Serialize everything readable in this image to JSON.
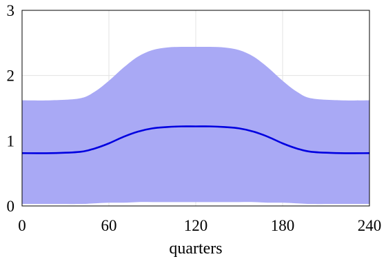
{
  "chart_data": {
    "type": "area",
    "title": "",
    "xlabel": "quarters",
    "ylabel": "",
    "xlim": [
      0,
      240
    ],
    "ylim": [
      0,
      3
    ],
    "xticks": [
      0,
      60,
      120,
      180,
      240
    ],
    "yticks": [
      0,
      1,
      2,
      3
    ],
    "grid": true,
    "x": [
      0,
      20,
      40,
      50,
      60,
      70,
      80,
      90,
      100,
      110,
      120,
      130,
      140,
      150,
      160,
      170,
      180,
      190,
      200,
      220,
      240
    ],
    "series": [
      {
        "kind": "line",
        "color": "#0000e0",
        "values": [
          0.81,
          0.81,
          0.83,
          0.88,
          0.96,
          1.06,
          1.14,
          1.19,
          1.21,
          1.22,
          1.22,
          1.22,
          1.21,
          1.19,
          1.14,
          1.06,
          0.96,
          0.88,
          0.83,
          0.81,
          0.81
        ]
      },
      {
        "kind": "band",
        "color": "#a9a9f5",
        "upper": [
          1.62,
          1.62,
          1.65,
          1.75,
          1.92,
          2.12,
          2.29,
          2.39,
          2.43,
          2.44,
          2.44,
          2.44,
          2.43,
          2.39,
          2.29,
          2.12,
          1.92,
          1.75,
          1.65,
          1.62,
          1.62
        ],
        "lower": [
          0.03,
          0.03,
          0.03,
          0.04,
          0.05,
          0.05,
          0.06,
          0.06,
          0.06,
          0.06,
          0.06,
          0.06,
          0.06,
          0.06,
          0.06,
          0.05,
          0.05,
          0.04,
          0.03,
          0.03,
          0.03
        ]
      }
    ]
  }
}
